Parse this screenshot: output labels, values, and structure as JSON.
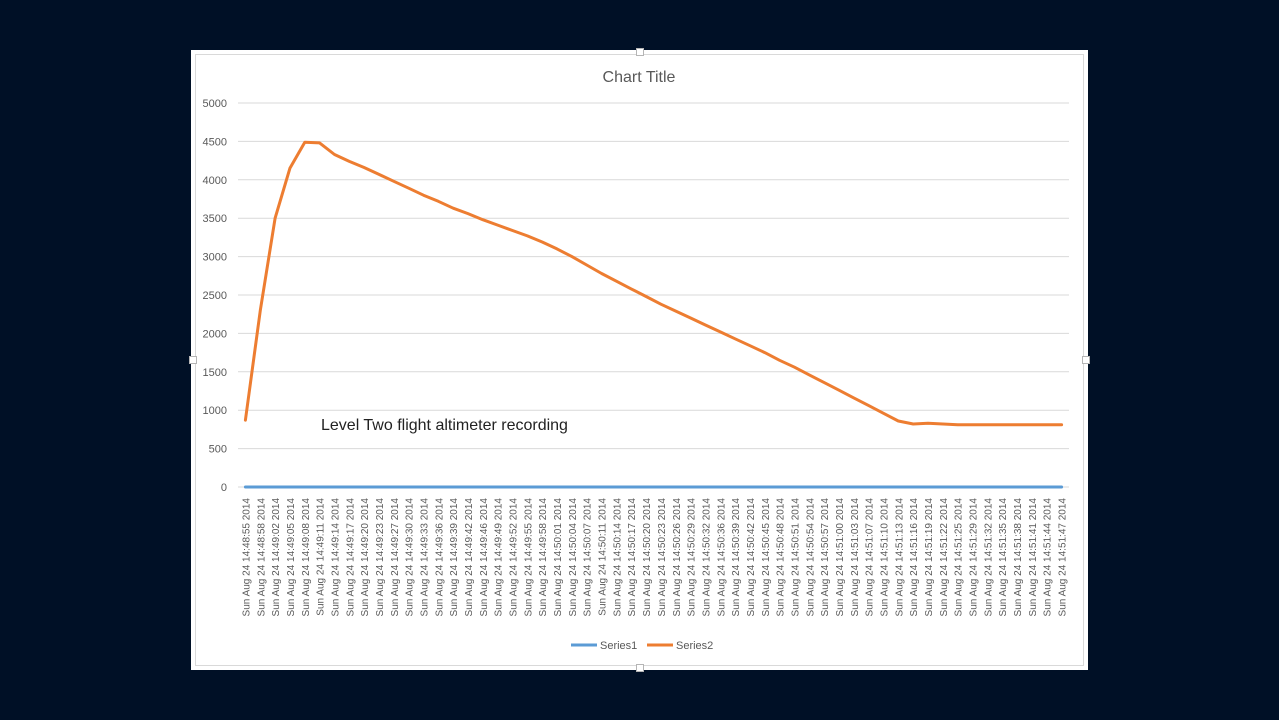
{
  "chart_data": {
    "type": "line",
    "title": "Chart Title",
    "annotation": "Level Two flight altimeter recording",
    "xlabel": "",
    "ylabel": "",
    "ylim": [
      0,
      5000
    ],
    "y_ticks": [
      0,
      500,
      1000,
      1500,
      2000,
      2500,
      3000,
      3500,
      4000,
      4500,
      5000
    ],
    "grid": true,
    "legend_position": "bottom",
    "x_tick_labels": [
      "Sun Aug 24 14:48:55 2014",
      "Sun Aug 24 14:48:58 2014",
      "Sun Aug 24 14:49:02 2014",
      "Sun Aug 24 14:49:05 2014",
      "Sun Aug 24 14:49:08 2014",
      "Sun Aug 24 14:49:11 2014",
      "Sun Aug 24 14:49:14 2014",
      "Sun Aug 24 14:49:17 2014",
      "Sun Aug 24 14:49:20 2014",
      "Sun Aug 24 14:49:23 2014",
      "Sun Aug 24 14:49:27 2014",
      "Sun Aug 24 14:49:30 2014",
      "Sun Aug 24 14:49:33 2014",
      "Sun Aug 24 14:49:36 2014",
      "Sun Aug 24 14:49:39 2014",
      "Sun Aug 24 14:49:42 2014",
      "Sun Aug 24 14:49:46 2014",
      "Sun Aug 24 14:49:49 2014",
      "Sun Aug 24 14:49:52 2014",
      "Sun Aug 24 14:49:55 2014",
      "Sun Aug 24 14:49:58 2014",
      "Sun Aug 24 14:50:01 2014",
      "Sun Aug 24 14:50:04 2014",
      "Sun Aug 24 14:50:07 2014",
      "Sun Aug 24 14:50:11 2014",
      "Sun Aug 24 14:50:14 2014",
      "Sun Aug 24 14:50:17 2014",
      "Sun Aug 24 14:50:20 2014",
      "Sun Aug 24 14:50:23 2014",
      "Sun Aug 24 14:50:26 2014",
      "Sun Aug 24 14:50:29 2014",
      "Sun Aug 24 14:50:32 2014",
      "Sun Aug 24 14:50:36 2014",
      "Sun Aug 24 14:50:39 2014",
      "Sun Aug 24 14:50:42 2014",
      "Sun Aug 24 14:50:45 2014",
      "Sun Aug 24 14:50:48 2014",
      "Sun Aug 24 14:50:51 2014",
      "Sun Aug 24 14:50:54 2014",
      "Sun Aug 24 14:50:57 2014",
      "Sun Aug 24 14:51:00 2014",
      "Sun Aug 24 14:51:03 2014",
      "Sun Aug 24 14:51:07 2014",
      "Sun Aug 24 14:51:10 2014",
      "Sun Aug 24 14:51:13 2014",
      "Sun Aug 24 14:51:16 2014",
      "Sun Aug 24 14:51:19 2014",
      "Sun Aug 24 14:51:22 2014",
      "Sun Aug 24 14:51:25 2014",
      "Sun Aug 24 14:51:29 2014",
      "Sun Aug 24 14:51:32 2014",
      "Sun Aug 24 14:51:35 2014",
      "Sun Aug 24 14:51:38 2014",
      "Sun Aug 24 14:51:41 2014",
      "Sun Aug 24 14:51:44 2014",
      "Sun Aug 24 14:51:47 2014"
    ],
    "series": [
      {
        "name": "Series1",
        "color": "#5b9bd5",
        "values": [
          0,
          0,
          0,
          0,
          0,
          0,
          0,
          0,
          0,
          0,
          0,
          0,
          0,
          0,
          0,
          0,
          0,
          0,
          0,
          0,
          0,
          0,
          0,
          0,
          0,
          0,
          0,
          0,
          0,
          0,
          0,
          0,
          0,
          0,
          0,
          0,
          0,
          0,
          0,
          0,
          0,
          0,
          0,
          0,
          0,
          0,
          0,
          0,
          0,
          0,
          0,
          0,
          0,
          0,
          0,
          0
        ]
      },
      {
        "name": "Series2",
        "color": "#ed7d31",
        "values": [
          870,
          2300,
          3500,
          4150,
          4490,
          4480,
          4330,
          4240,
          4160,
          4070,
          3980,
          3890,
          3800,
          3720,
          3630,
          3560,
          3480,
          3410,
          3340,
          3270,
          3190,
          3100,
          3000,
          2890,
          2780,
          2680,
          2580,
          2480,
          2380,
          2290,
          2200,
          2110,
          2020,
          1930,
          1840,
          1750,
          1650,
          1560,
          1460,
          1360,
          1260,
          1160,
          1060,
          960,
          860,
          820,
          830,
          820,
          810,
          810,
          810,
          810,
          810,
          810,
          810,
          810
        ]
      }
    ]
  }
}
